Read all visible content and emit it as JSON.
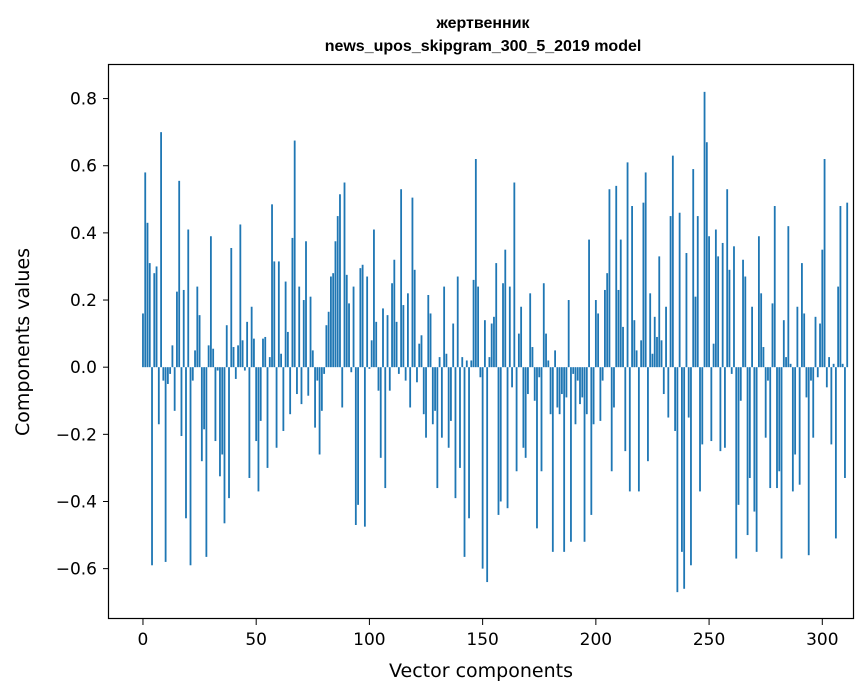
{
  "chart_data": {
    "type": "bar",
    "title": "жертвенник",
    "subtitle": "news_upos_skipgram_300_5_2019 model",
    "xlabel": "Vector components",
    "ylabel": "Components values",
    "xlim": [
      -15,
      314
    ],
    "ylim": [
      -0.75,
      0.9
    ],
    "xticks": [
      0,
      50,
      100,
      150,
      200,
      250,
      300
    ],
    "yticks": [
      -0.6,
      -0.4,
      -0.2,
      0.0,
      0.2,
      0.4,
      0.6,
      0.8
    ],
    "ytick_labels": [
      "−0.6",
      "−0.4",
      "−0.2",
      "0.0",
      "0.2",
      "0.4",
      "0.6",
      "0.8"
    ],
    "grid": false,
    "bar_color": "#1f77b4",
    "values": [
      0.16,
      0.58,
      0.43,
      0.31,
      -0.59,
      0.28,
      0.3,
      -0.17,
      0.7,
      -0.04,
      -0.58,
      -0.05,
      -0.02,
      0.065,
      -0.13,
      0.225,
      0.555,
      -0.205,
      0.23,
      -0.45,
      0.41,
      -0.59,
      -0.04,
      0.05,
      0.24,
      0.155,
      -0.28,
      -0.185,
      -0.565,
      0.065,
      0.39,
      0.055,
      -0.22,
      -0.01,
      -0.325,
      -0.26,
      -0.465,
      0.125,
      -0.39,
      0.355,
      0.06,
      -0.035,
      0.065,
      0.425,
      0.08,
      -0.01,
      0.135,
      -0.33,
      0.18,
      0.085,
      -0.22,
      -0.37,
      -0.16,
      0.085,
      0.09,
      -0.3,
      0.03,
      0.485,
      0.315,
      -0.24,
      0.315,
      0.04,
      -0.19,
      0.255,
      0.105,
      -0.14,
      0.385,
      0.675,
      -0.08,
      0.24,
      -0.11,
      0.2,
      0.375,
      -0.085,
      0.21,
      0.05,
      -0.18,
      -0.04,
      -0.26,
      -0.13,
      -0.02,
      0.125,
      0.165,
      0.27,
      0.28,
      0.375,
      0.45,
      0.515,
      -0.12,
      0.55,
      0.275,
      0.19,
      -0.015,
      0.24,
      -0.47,
      -0.41,
      0.295,
      0.305,
      -0.475,
      0.27,
      -0.005,
      0.08,
      0.41,
      0.135,
      -0.07,
      -0.27,
      0.175,
      -0.36,
      0.155,
      -0.07,
      0.25,
      0.32,
      0.135,
      -0.02,
      0.53,
      0.185,
      -0.04,
      0.22,
      -0.12,
      0.505,
      0.29,
      -0.045,
      0.07,
      0.095,
      -0.14,
      -0.21,
      0.215,
      0.16,
      -0.17,
      -0.13,
      -0.36,
      0.03,
      -0.21,
      0.24,
      0.04,
      -0.24,
      -0.16,
      0.13,
      -0.39,
      0.27,
      -0.3,
      0.03,
      -0.565,
      0.02,
      -0.45,
      0.02,
      0.26,
      0.62,
      0.24,
      -0.03,
      -0.6,
      0.14,
      -0.64,
      0.03,
      0.13,
      0.15,
      0.31,
      -0.44,
      -0.4,
      0.25,
      0.35,
      -0.42,
      0.24,
      -0.06,
      0.55,
      -0.31,
      0.1,
      0.18,
      -0.24,
      -0.27,
      -0.08,
      0.22,
      0.06,
      -0.1,
      -0.48,
      -0.03,
      -0.31,
      0.25,
      0.1,
      0.02,
      -0.14,
      -0.55,
      0.05,
      -0.12,
      -0.14,
      -0.08,
      -0.55,
      -0.09,
      0.2,
      -0.52,
      -0.02,
      -0.17,
      -0.04,
      -0.11,
      -0.09,
      -0.52,
      -0.14,
      0.38,
      -0.44,
      -0.17,
      0.2,
      0.16,
      -0.16,
      -0.04,
      0.23,
      0.28,
      0.53,
      -0.31,
      -0.12,
      0.54,
      0.23,
      0.38,
      0.12,
      -0.25,
      0.61,
      -0.37,
      0.48,
      0.14,
      0.05,
      -0.37,
      0.08,
      0.49,
      0.58,
      -0.28,
      0.22,
      0.04,
      0.15,
      0.09,
      0.33,
      0.08,
      -0.08,
      0.18,
      -0.15,
      0.45,
      0.63,
      -0.19,
      -0.67,
      0.46,
      -0.55,
      -0.66,
      0.34,
      -0.15,
      -0.59,
      0.59,
      0.21,
      0.45,
      -0.37,
      -0.23,
      0.82,
      0.67,
      0.39,
      -0.22,
      0.07,
      0.41,
      0.33,
      -0.25,
      0.37,
      -0.24,
      0.53,
      0.29,
      -0.02,
      0.36,
      -0.57,
      -0.41,
      -0.1,
      0.32,
      0.27,
      -0.5,
      -0.33,
      0.18,
      -0.43,
      -0.55,
      0.39,
      0.22,
      0.06,
      -0.21,
      -0.04,
      -0.36,
      0.19,
      0.48,
      -0.36,
      -0.31,
      -0.57,
      0.14,
      0.03,
      0.42,
      0.01,
      -0.37,
      -0.26,
      0.18,
      -0.35,
      0.31,
      0.16,
      -0.09,
      -0.56,
      -0.04,
      -0.21,
      0.15,
      -0.03,
      0.13,
      0.35,
      0.62,
      -0.06,
      0.03,
      -0.23,
      0.01,
      -0.51,
      0.24,
      0.48,
      0.01,
      -0.33,
      0.49
    ]
  }
}
